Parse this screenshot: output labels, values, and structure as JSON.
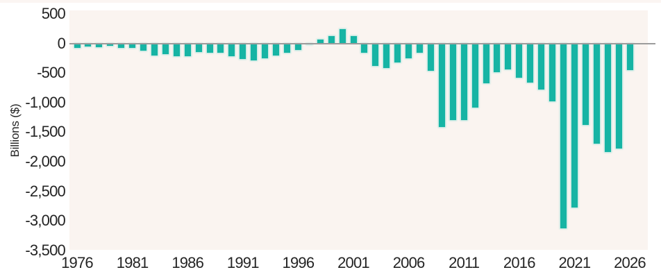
{
  "chart_data": {
    "type": "bar",
    "title": "",
    "xlabel": "",
    "ylabel": "Billions ($)",
    "grid": false,
    "zero_line": true,
    "legend": "none",
    "ylim": [
      -3500,
      560
    ],
    "y_ticks": [
      {
        "value": 500,
        "label": "500"
      },
      {
        "value": 0,
        "label": "0"
      },
      {
        "value": -500,
        "label": "-500"
      },
      {
        "value": -1000,
        "label": "-1,000"
      },
      {
        "value": -1500,
        "label": "-1,500"
      },
      {
        "value": -2000,
        "label": "-2,000"
      },
      {
        "value": -2500,
        "label": "-2,500"
      },
      {
        "value": -3000,
        "label": "-3,000"
      },
      {
        "value": -3500,
        "label": "-3,500"
      }
    ],
    "x_tick_labels": [
      "1976",
      "1981",
      "1986",
      "1991",
      "1996",
      "2001",
      "2006",
      "2011",
      "2016",
      "2021",
      "2026"
    ],
    "x_tick_years": [
      1976,
      1981,
      1986,
      1991,
      1996,
      2001,
      2006,
      2011,
      2016,
      2021,
      2026
    ],
    "years": [
      1976,
      1977,
      1978,
      1979,
      1980,
      1981,
      1982,
      1983,
      1984,
      1985,
      1986,
      1987,
      1988,
      1989,
      1990,
      1991,
      1992,
      1993,
      1994,
      1995,
      1996,
      1997,
      1998,
      1999,
      2000,
      2001,
      2002,
      2003,
      2004,
      2005,
      2006,
      2007,
      2008,
      2009,
      2010,
      2011,
      2012,
      2013,
      2014,
      2015,
      2016,
      2017,
      2018,
      2019,
      2020,
      2021,
      2022,
      2023,
      2024,
      2025,
      2026
    ],
    "values": [
      -74,
      -54,
      -59,
      -41,
      -74,
      -79,
      -128,
      -208,
      -185,
      -212,
      -221,
      -150,
      -155,
      -153,
      -221,
      -269,
      -290,
      -255,
      -203,
      -164,
      -107,
      -22,
      69,
      126,
      236,
      128,
      -158,
      -378,
      -413,
      -318,
      -248,
      -161,
      -459,
      -1413,
      -1294,
      -1300,
      -1087,
      -680,
      -485,
      -442,
      -585,
      -665,
      -779,
      -984,
      -3132,
      -2772,
      -1375,
      -1695,
      -1833,
      -1775,
      -450
    ],
    "colors": {
      "bar": "#16b4a4",
      "bar_halo": "#86ddd2",
      "plot_background": "#faf4f0",
      "top_strip": "#fbf5f2",
      "zero_line": "#9c9c9c",
      "text": "#242424",
      "page_background": "#ffffff"
    }
  }
}
